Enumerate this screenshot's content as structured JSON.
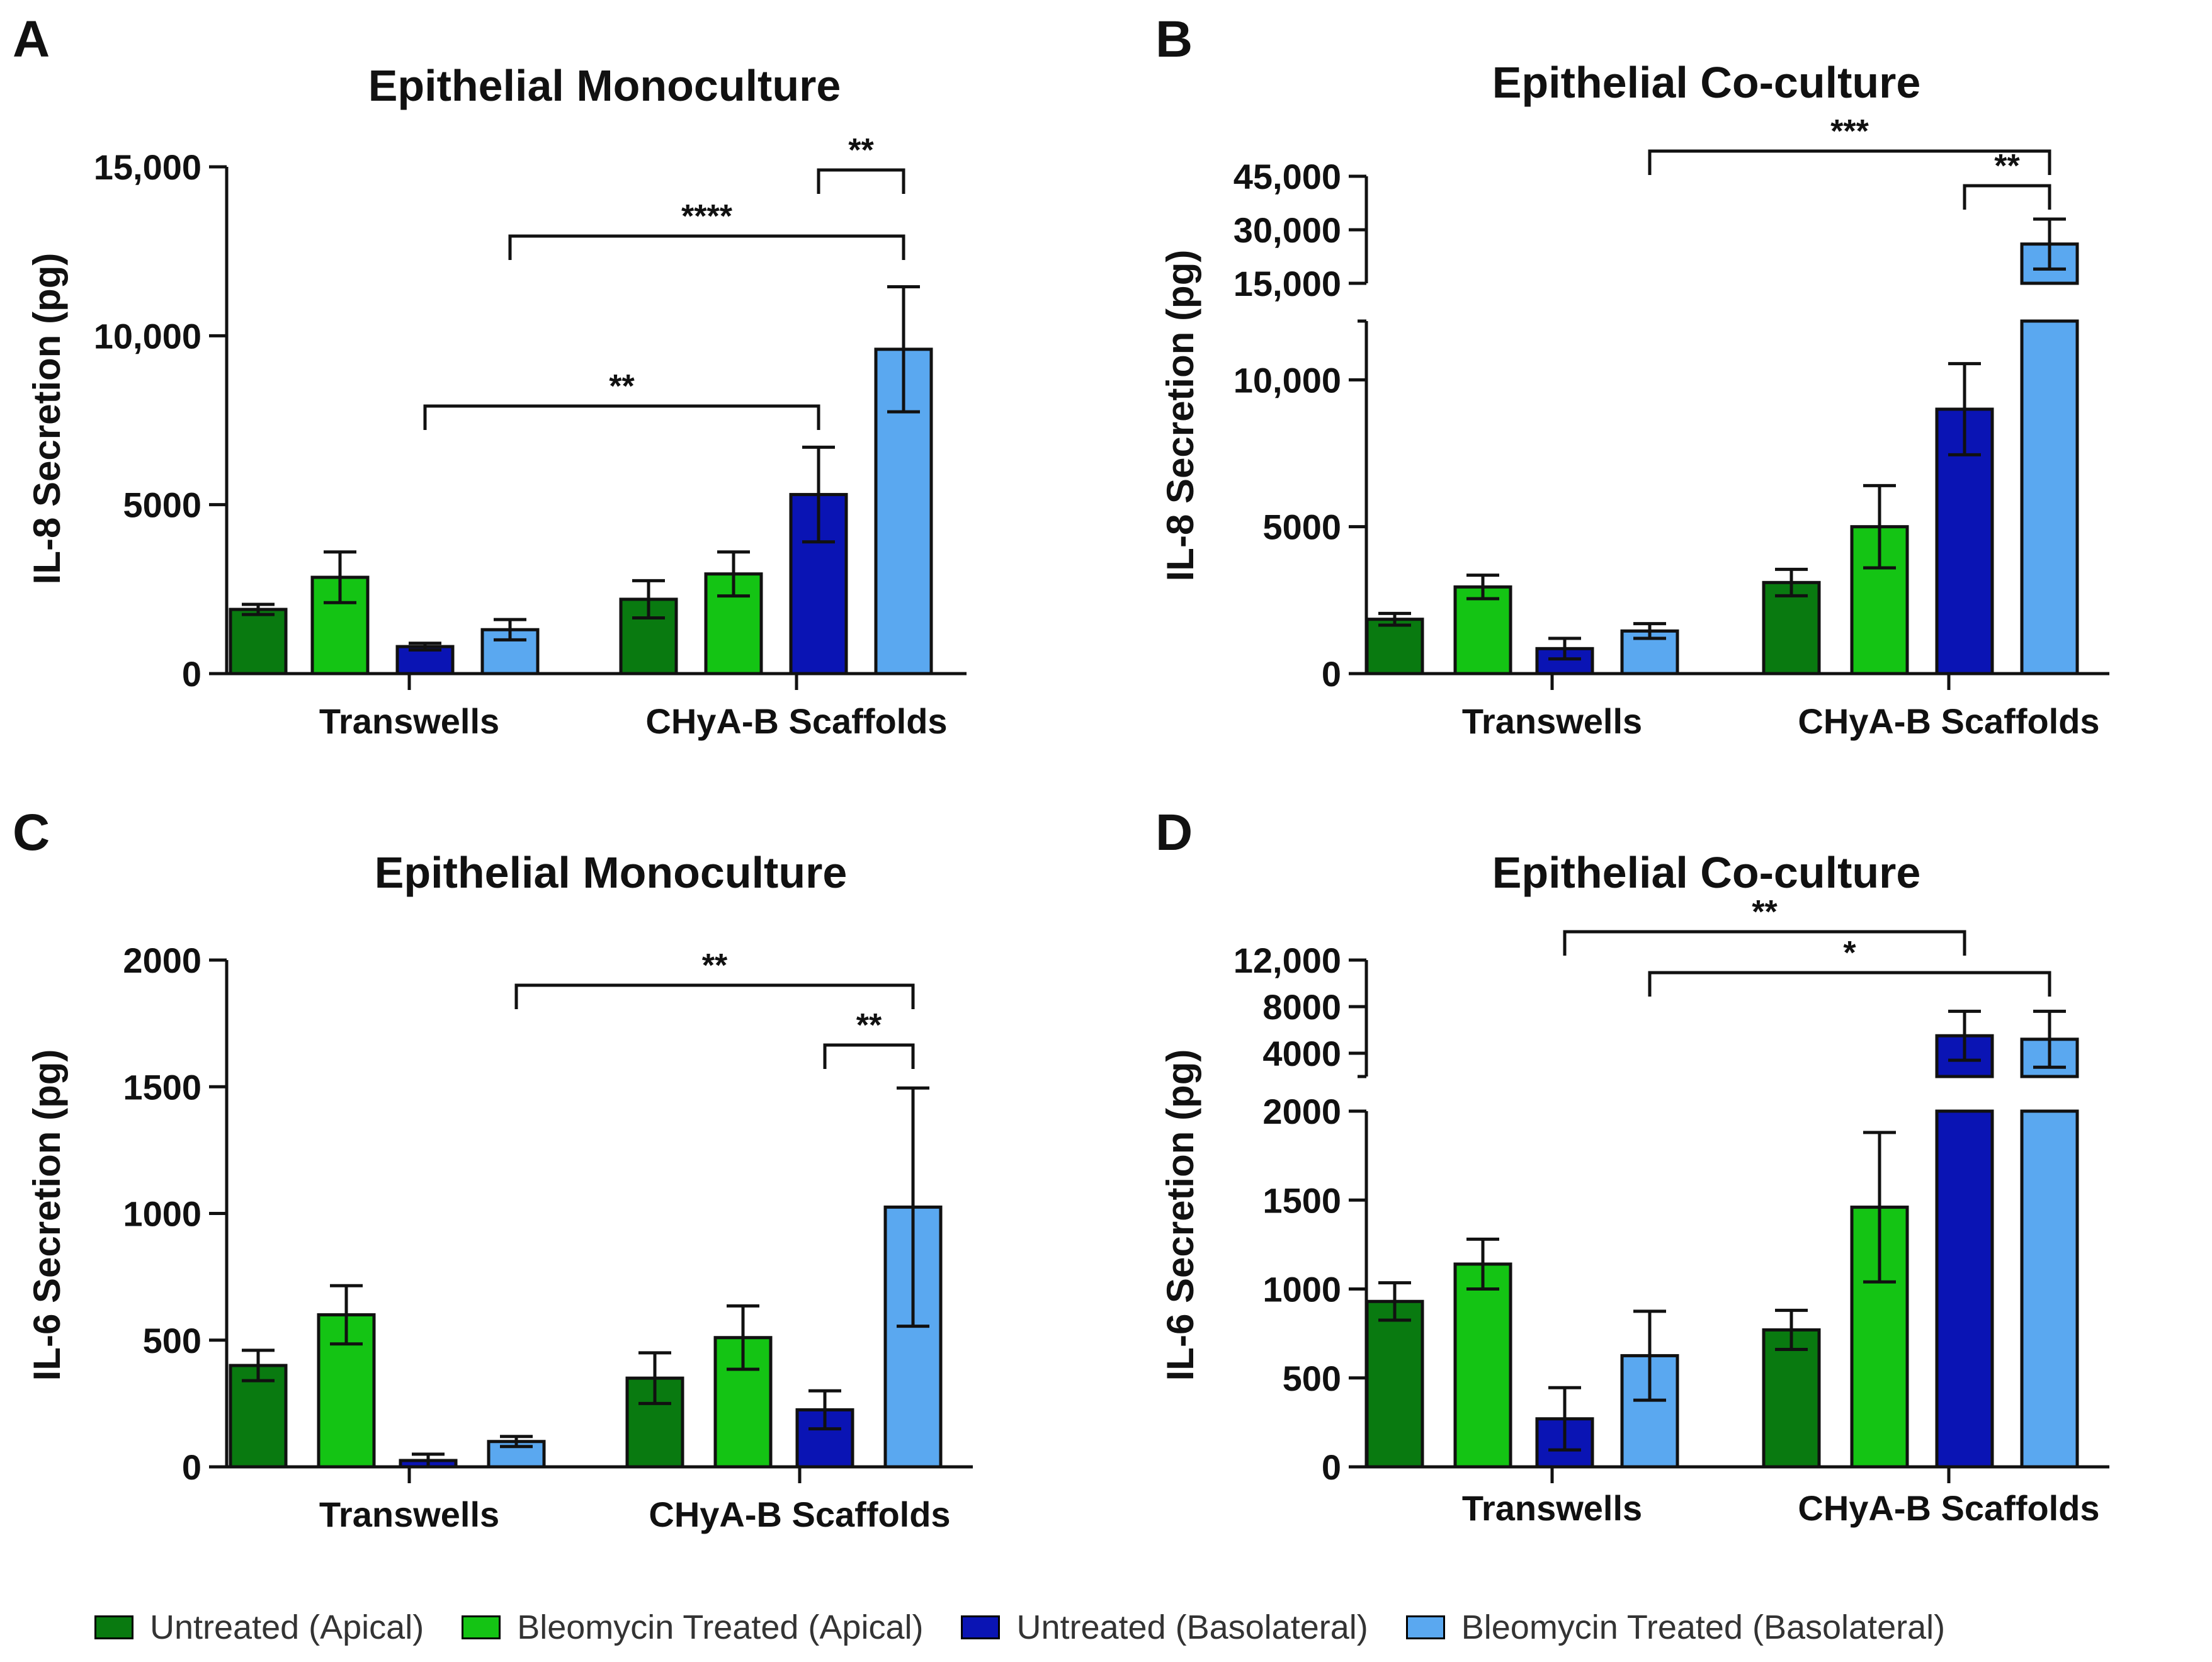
{
  "colors": {
    "untreated_apical": "#097a10",
    "bleomycin_apical": "#14c414",
    "untreated_basolateral": "#0a14b4",
    "bleomycin_basolateral": "#5aa8f0"
  },
  "legend": [
    {
      "label": "Untreated (Apical)",
      "color": "#097a10"
    },
    {
      "label": "Bleomycin Treated (Apical)",
      "color": "#14c414"
    },
    {
      "label": "Untreated (Basolateral)",
      "color": "#0a14b4"
    },
    {
      "label": "Bleomycin Treated (Basolateral)",
      "color": "#5aa8f0"
    }
  ],
  "chart_data": [
    {
      "panel": "A",
      "type": "bar",
      "title": "Epithelial  Monoculture",
      "ylabel": "IL-8  Secretion  (pg)",
      "groups": [
        "Transwells",
        "CHyA-B Scaffolds"
      ],
      "series": [
        {
          "name": "Untreated (Apical)",
          "values": [
            1900,
            2200
          ],
          "errors": [
            150,
            550
          ]
        },
        {
          "name": "Bleomycin Treated (Apical)",
          "values": [
            2850,
            2950
          ],
          "errors": [
            750,
            650
          ]
        },
        {
          "name": "Untreated (Basolateral)",
          "values": [
            800,
            5300
          ],
          "errors": [
            100,
            1400
          ]
        },
        {
          "name": "Bleomycin Treated (Basolateral)",
          "values": [
            1300,
            9600
          ],
          "errors": [
            300,
            1850
          ]
        }
      ],
      "ylim": [
        0,
        15000
      ],
      "yticks": [
        0,
        5000,
        10000,
        15000
      ],
      "ytick_labels": [
        "0",
        "5000",
        "10,000",
        "15,000"
      ],
      "significance": [
        {
          "from": [
            0,
            2
          ],
          "to": [
            1,
            2
          ],
          "label": "**"
        },
        {
          "from": [
            0,
            3
          ],
          "to": [
            1,
            3
          ],
          "label": "****"
        },
        {
          "from": [
            1,
            2
          ],
          "to": [
            1,
            3
          ],
          "label": "**"
        }
      ]
    },
    {
      "panel": "B",
      "type": "bar",
      "title": "Epithelial  Co-culture",
      "ylabel": "IL-8  Secretion  (pg)",
      "groups": [
        "Transwells",
        "CHyA-B Scaffolds"
      ],
      "series": [
        {
          "name": "Untreated (Apical)",
          "values": [
            1850,
            3100
          ],
          "errors": [
            200,
            450
          ]
        },
        {
          "name": "Bleomycin Treated (Apical)",
          "values": [
            2950,
            5000
          ],
          "errors": [
            400,
            1400
          ]
        },
        {
          "name": "Untreated (Basolateral)",
          "values": [
            850,
            9000
          ],
          "errors": [
            350,
            1550
          ]
        },
        {
          "name": "Bleomycin Treated (Basolateral)",
          "values": [
            1450,
            26000
          ],
          "errors": [
            250,
            7000
          ]
        }
      ],
      "broken_axis": true,
      "ylim_lower": [
        0,
        12000
      ],
      "yticks_lower": [
        0,
        5000,
        10000
      ],
      "ytick_labels_lower": [
        "0",
        "5000",
        "10,000"
      ],
      "ylim_upper": [
        15000,
        45000
      ],
      "yticks_upper": [
        15000,
        30000,
        45000
      ],
      "ytick_labels_upper": [
        "15,000",
        "30,000",
        "45,000"
      ],
      "significance": [
        {
          "from": [
            0,
            3
          ],
          "to": [
            1,
            3
          ],
          "label": "***"
        },
        {
          "from": [
            1,
            2
          ],
          "to": [
            1,
            3
          ],
          "label": "**"
        }
      ]
    },
    {
      "panel": "C",
      "type": "bar",
      "title": "Epithelial  Monoculture",
      "ylabel": "IL-6  Secretion  (pg)",
      "groups": [
        "Transwells",
        "CHyA-B Scaffolds"
      ],
      "series": [
        {
          "name": "Untreated (Apical)",
          "values": [
            400,
            350
          ],
          "errors": [
            60,
            100
          ]
        },
        {
          "name": "Bleomycin Treated (Apical)",
          "values": [
            600,
            510
          ],
          "errors": [
            115,
            125
          ]
        },
        {
          "name": "Untreated (Basolateral)",
          "values": [
            25,
            225
          ],
          "errors": [
            25,
            75
          ]
        },
        {
          "name": "Bleomycin Treated (Basolateral)",
          "values": [
            100,
            1025
          ],
          "errors": [
            20,
            470
          ]
        }
      ],
      "ylim": [
        0,
        2000
      ],
      "yticks": [
        0,
        500,
        1000,
        1500,
        2000
      ],
      "ytick_labels": [
        "0",
        "500",
        "1000",
        "1500",
        "2000"
      ],
      "significance": [
        {
          "from": [
            0,
            3
          ],
          "to": [
            1,
            3
          ],
          "label": "**"
        },
        {
          "from": [
            1,
            2
          ],
          "to": [
            1,
            3
          ],
          "label": "**"
        }
      ]
    },
    {
      "panel": "D",
      "type": "bar",
      "title": "Epithelial  Co-culture",
      "ylabel": "IL-6  Secretion  (pg)",
      "groups": [
        "Transwells",
        "CHyA-B Scaffolds"
      ],
      "series": [
        {
          "name": "Untreated (Apical)",
          "values": [
            930,
            770
          ],
          "errors": [
            105,
            110
          ]
        },
        {
          "name": "Bleomycin Treated (Apical)",
          "values": [
            1140,
            1460
          ],
          "errors": [
            140,
            420
          ]
        },
        {
          "name": "Untreated (Basolateral)",
          "values": [
            270,
            5500
          ],
          "errors": [
            175,
            2100
          ]
        },
        {
          "name": "Bleomycin Treated (Basolateral)",
          "values": [
            625,
            5200
          ],
          "errors": [
            250,
            2400
          ]
        }
      ],
      "broken_axis": true,
      "ylim_lower": [
        0,
        2000
      ],
      "yticks_lower": [
        0,
        500,
        1000,
        1500,
        2000
      ],
      "ytick_labels_lower": [
        "0",
        "500",
        "1000",
        "1500",
        "2000"
      ],
      "ylim_upper": [
        2000,
        12000
      ],
      "yticks_upper": [
        4000,
        8000,
        12000
      ],
      "ytick_labels_upper": [
        "4000",
        "8000",
        "12,000"
      ],
      "significance": [
        {
          "from": [
            0,
            2
          ],
          "to": [
            1,
            2
          ],
          "label": "**"
        },
        {
          "from": [
            0,
            3
          ],
          "to": [
            1,
            3
          ],
          "label": "*"
        }
      ]
    }
  ]
}
